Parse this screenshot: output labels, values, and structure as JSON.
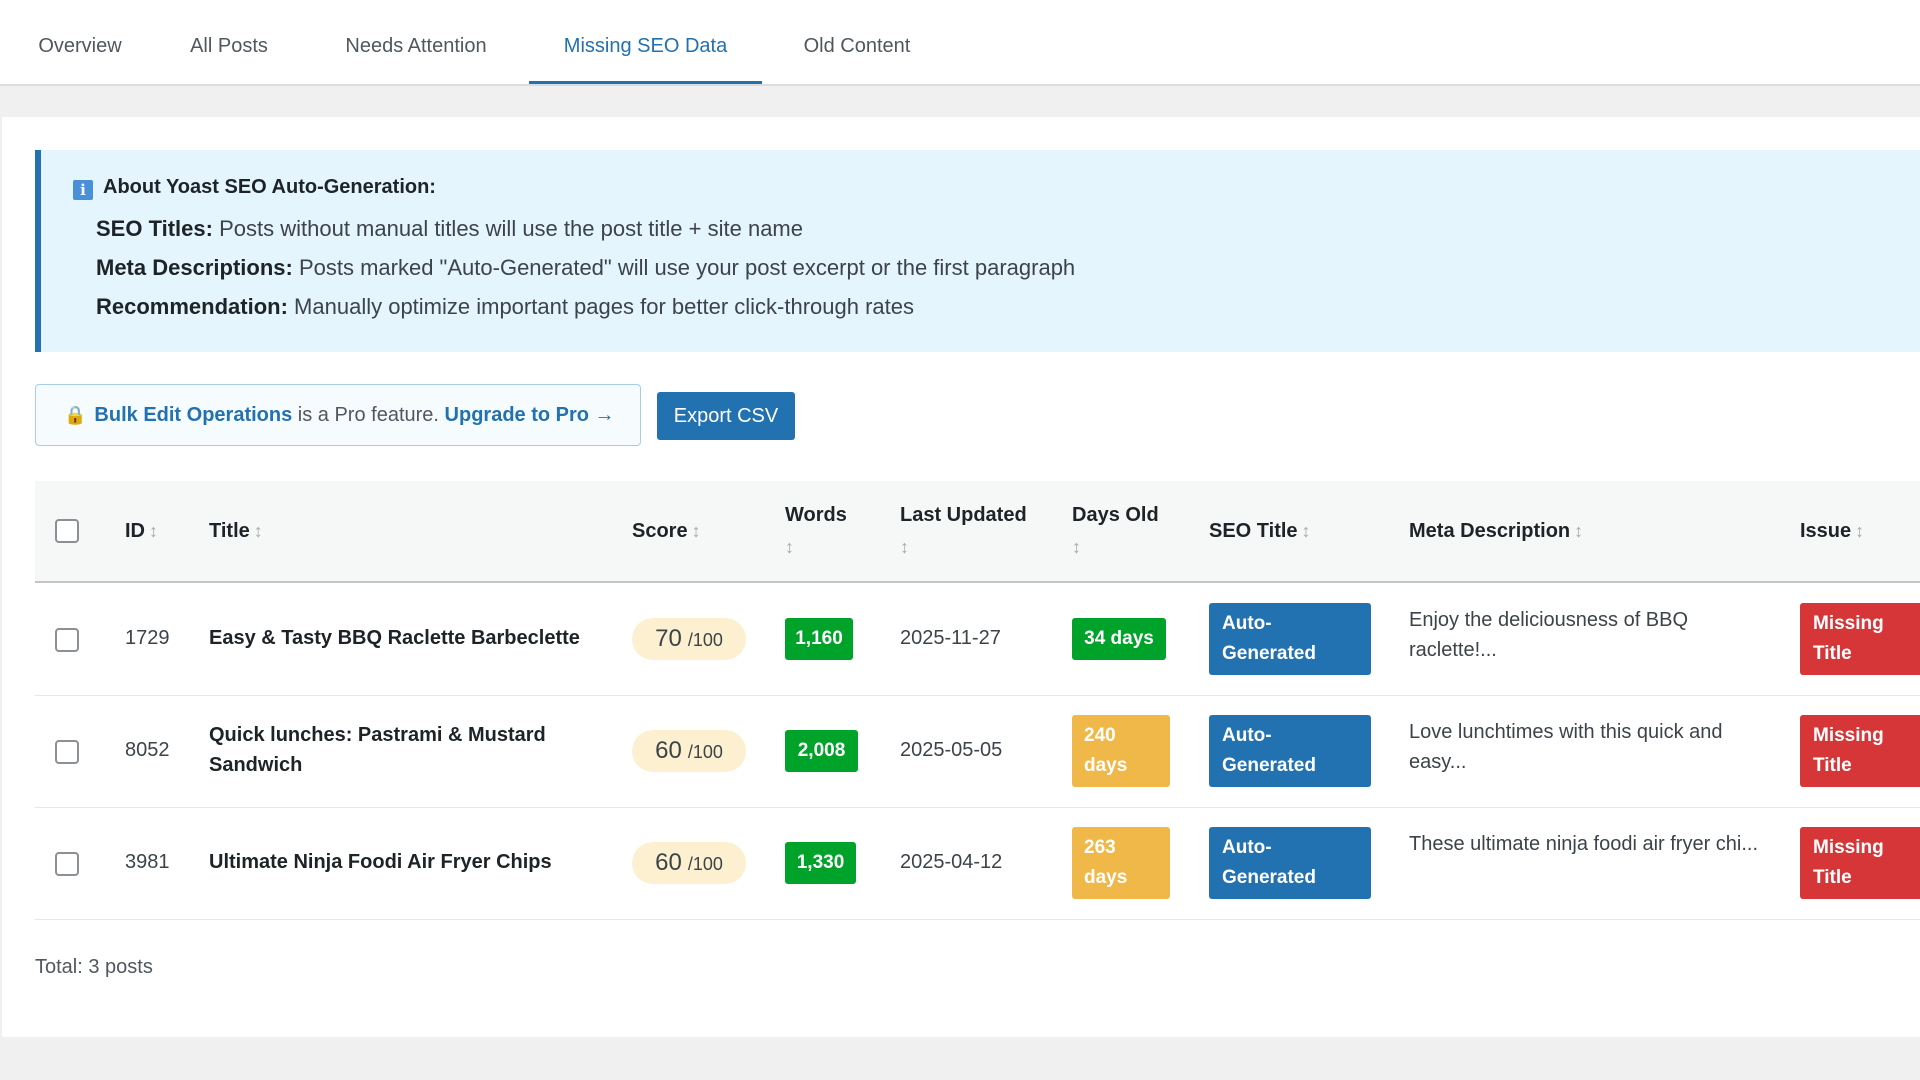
{
  "tabs": [
    {
      "label": "Overview",
      "active": false
    },
    {
      "label": "All Posts",
      "active": false
    },
    {
      "label": "Needs Attention",
      "active": false
    },
    {
      "label": "Missing SEO Data",
      "active": true
    },
    {
      "label": "Old Content",
      "active": false
    }
  ],
  "notice": {
    "heading": "About Yoast SEO Auto-Generation:",
    "icon": "info-icon",
    "lines": [
      {
        "label": "SEO Titles:",
        "text": "Posts without manual titles will use the post title + site name"
      },
      {
        "label": "Meta Descriptions:",
        "text": "Posts marked \"Auto-Generated\" will use your post excerpt or the first paragraph"
      },
      {
        "label": "Recommendation:",
        "text": "Manually optimize important pages for better click-through rates"
      }
    ]
  },
  "pro": {
    "icon": "lock-icon",
    "feature": "Bulk Edit Operations",
    "middle": " is a Pro feature. ",
    "upgrade": "Upgrade to Pro →"
  },
  "export_label": "Export CSV",
  "columns": {
    "id": "ID",
    "title": "Title",
    "score": "Score",
    "words": "Words",
    "last_updated": "Last Updated",
    "days_old": "Days Old",
    "seo_title": "SEO Title",
    "meta": "Meta Description",
    "issue": "Issue",
    "sort_glyph": "↕"
  },
  "rows": [
    {
      "id": "1729",
      "title": "Easy & Tasty BBQ Raclette Barbeclette",
      "score": "70",
      "score_max": "/100",
      "words": "1,160",
      "updated": "2025-11-27",
      "days_old": "34 days",
      "seo_title": "Auto-Generated",
      "meta": "Enjoy the deliciousness of BBQ raclette!...",
      "issue": "Missing Title"
    },
    {
      "id": "8052",
      "title": "Quick lunches: Pastrami & Mustard Sandwich",
      "score": "60",
      "score_max": "/100",
      "words": "2,008",
      "updated": "2025-05-05",
      "days_old": "240 days",
      "seo_title": "Auto-Generated",
      "meta": "Love lunchtimes with this quick and easy...",
      "issue": "Missing Title"
    },
    {
      "id": "3981",
      "title": "Ultimate Ninja Foodi Air Fryer Chips",
      "score": "60",
      "score_max": "/100",
      "words": "1,330",
      "updated": "2025-04-12",
      "days_old": "263 days",
      "seo_title": "Auto-Generated",
      "meta": "These ultimate ninja foodi air fryer chi...",
      "issue": "Missing Title"
    }
  ],
  "total": "Total: 3 posts",
  "colors": {
    "accent": "#2271b1",
    "green": "#00a32a",
    "orange": "#f0b849",
    "red": "#d63638",
    "notice_bg": "#e5f5fd",
    "score_bg": "#fcf0d0"
  }
}
